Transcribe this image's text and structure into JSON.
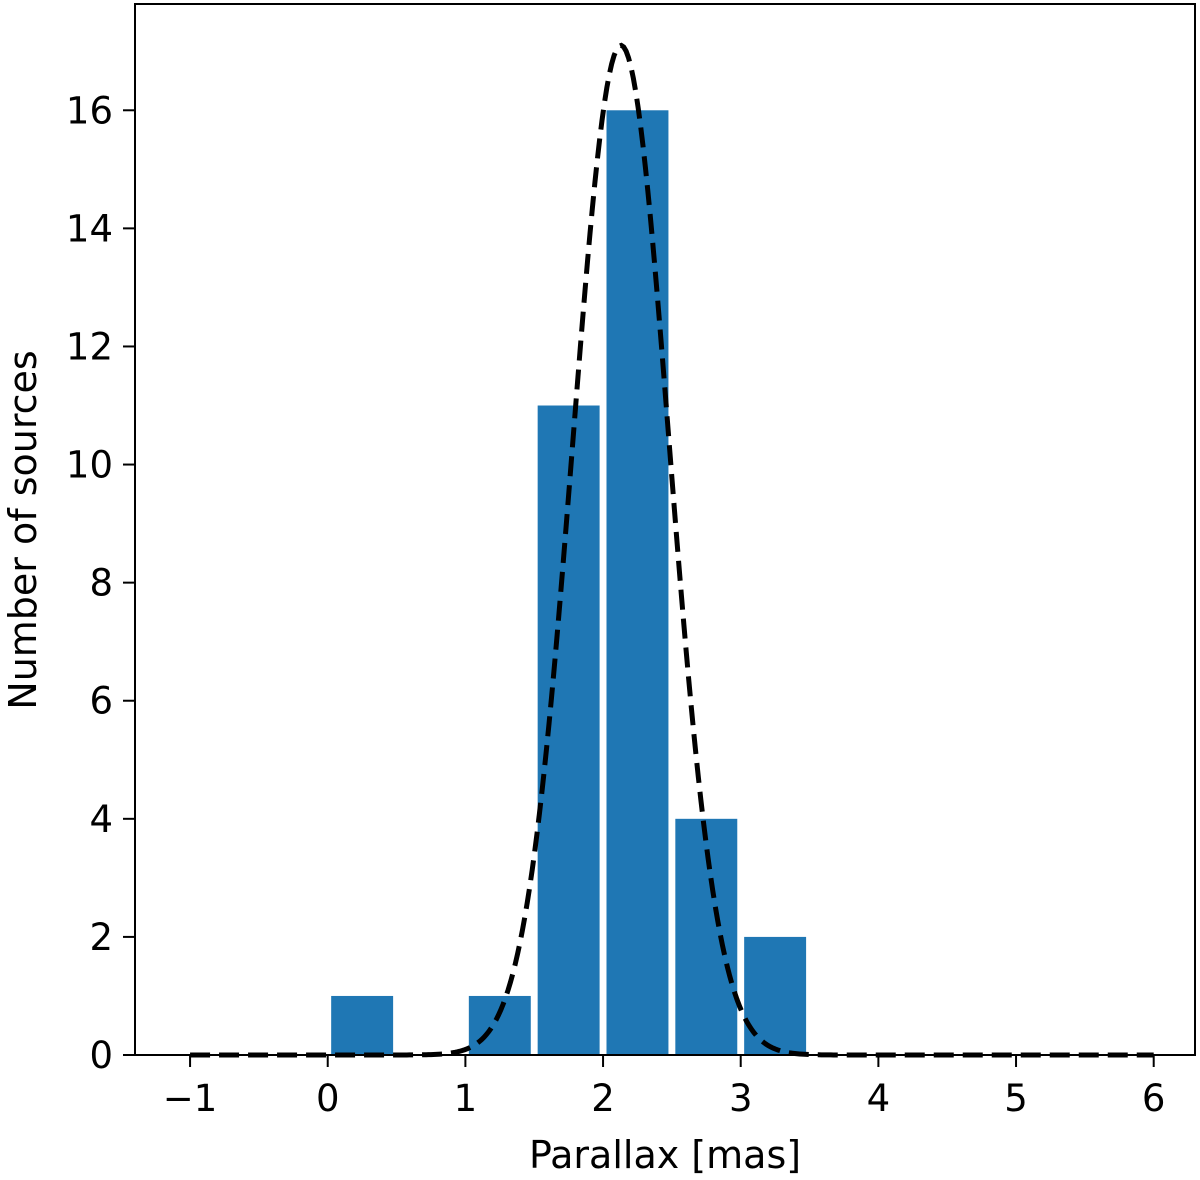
{
  "chart_data": {
    "type": "bar",
    "title": "",
    "xlabel": "Parallax [mas]",
    "ylabel": "Number of sources",
    "xlim": [
      -1.4,
      6.3
    ],
    "ylim": [
      0,
      17.8
    ],
    "xticks": [
      -1,
      0,
      1,
      2,
      3,
      4,
      5,
      6
    ],
    "xtick_labels": [
      "−1",
      "0",
      "1",
      "2",
      "3",
      "4",
      "5",
      "6"
    ],
    "yticks": [
      0,
      2,
      4,
      6,
      8,
      10,
      12,
      14,
      16
    ],
    "ytick_labels": [
      "0",
      "2",
      "4",
      "6",
      "8",
      "10",
      "12",
      "14",
      "16"
    ],
    "grid": false,
    "bar_color": "#1f77b4",
    "bins": [
      {
        "left": 0.0,
        "right": 0.5,
        "count": 1
      },
      {
        "left": 0.5,
        "right": 1.0,
        "count": 0
      },
      {
        "left": 1.0,
        "right": 1.5,
        "count": 1
      },
      {
        "left": 1.5,
        "right": 2.0,
        "count": 11
      },
      {
        "left": 2.0,
        "right": 2.5,
        "count": 16
      },
      {
        "left": 2.5,
        "right": 3.0,
        "count": 4
      },
      {
        "left": 3.0,
        "right": 3.5,
        "count": 2
      }
    ],
    "bar_width_fraction": 0.9,
    "fit_curve": {
      "type": "gaussian",
      "style": "dashed",
      "color": "#000000",
      "amplitude": 17.1,
      "mean": 2.13,
      "sigma": 0.35,
      "x_range": [
        -1,
        6
      ]
    }
  }
}
